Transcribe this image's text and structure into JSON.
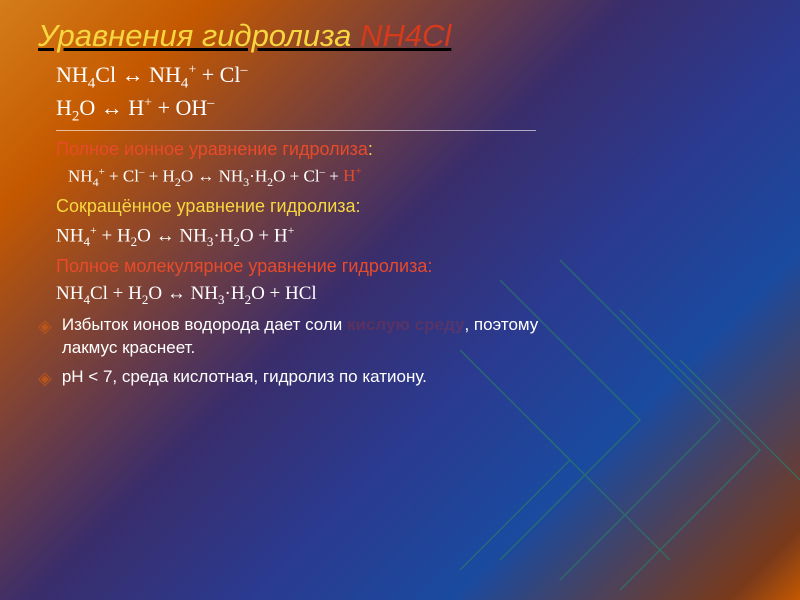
{
  "title": {
    "part1": "Уравнения гидролиза ",
    "part2": "NH4Cl"
  },
  "eq1_html": "NH<sub>4</sub>Cl ↔ NH<sub>4</sub><sup>+</sup> + Cl<sup>–</sup>",
  "eq2_html": "H<sub>2</sub>O ↔ H<sup>+</sup> + OH<sup>–</sup>",
  "label_full_ionic": "Полное ионное уравнение гидролиза",
  "eq3_html": "NH<sub>4</sub><sup>+</sup> + Cl<sup>–</sup>  + H<sub>2</sub>O ↔ NH<sub>3</sub>·H<sub>2</sub>O + Cl<sup>–</sup> + <span class=\"h-red\">H<sup>+</sup></span>",
  "label_short": "Сокращённое уравнение гидролиза:",
  "eq4_html": "NH<sub>4</sub><sup>+</sup> + H<sub>2</sub>O ↔ NH<sub>3</sub>·H<sub>2</sub>O + H<sup>+</sup>",
  "label_full_mol": "Полное молекулярное уравнение гидролиза:",
  "eq5_html": "NH<sub>4</sub>Cl + H<sub>2</sub>O ↔ NH<sub>3</sub>·H<sub>2</sub>O + HCl",
  "excess_line_a": "Избыток ионов водорода дает соли ",
  "excess_blank": "кислую среду",
  "excess_line_b": ", поэтому",
  "excess_line2": "лакмус краснеет.",
  "ph_line": "рН < 7, среда кислотная, гидролиз по катиону.",
  "colors": {
    "title_yellow": "#f7d740",
    "title_red": "#d63a1a",
    "red_text": "#e84a2a",
    "deco_line": "#2a7a6a"
  }
}
